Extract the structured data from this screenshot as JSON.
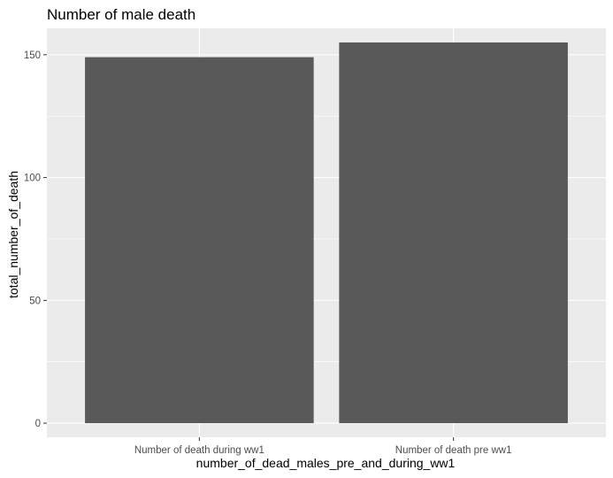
{
  "chart_data": {
    "type": "bar",
    "title": "Number of male death",
    "xlabel": "number_of_dead_males_pre_and_during_ww1",
    "ylabel": "total_number_of_death",
    "categories": [
      "Number of death during ww1",
      "Number of death pre ww1"
    ],
    "values": [
      149,
      155
    ],
    "ylim": [
      -5.75,
      160.75
    ],
    "yticks": [
      0,
      50,
      100,
      150
    ],
    "grid": true,
    "legend": "none",
    "colors": {
      "panel": "#ebebeb",
      "grid": "#ffffff",
      "bar": "#595959",
      "tick": "#333333"
    }
  }
}
